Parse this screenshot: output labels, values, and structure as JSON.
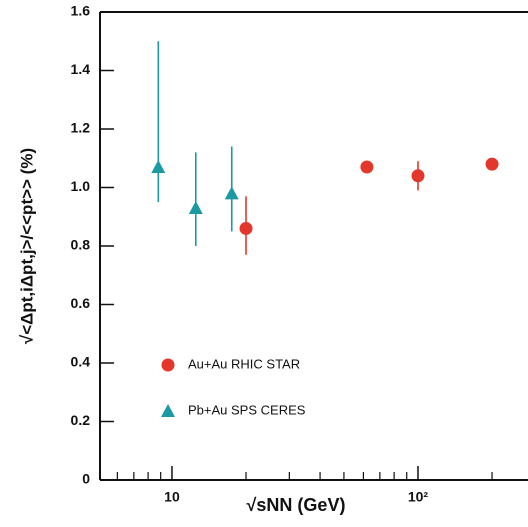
{
  "chart_data": {
    "type": "scatter",
    "xlabel": "√sNN (GeV)",
    "ylabel": "√<Δpt,iΔpt,j>/<<pt>> (%)",
    "xscale": "log",
    "xlim": [
      5.1,
      280
    ],
    "ylim": [
      0,
      1.6
    ],
    "xticks": [
      10,
      {
        "value": 100,
        "label": "10²"
      }
    ],
    "xminorticks": [
      6,
      7,
      8,
      9,
      20,
      30,
      40,
      50,
      60,
      70,
      80,
      90,
      200
    ],
    "yticks": [
      0,
      0.2,
      0.4,
      0.6,
      0.8,
      {
        "value": 1,
        "label": "1.0"
      },
      1.2,
      1.4,
      1.6
    ],
    "legend": "lower left",
    "series": [
      {
        "name": "Au+Au RHIC STAR",
        "color": "#e2372a",
        "marker": "circle",
        "x": [
          20,
          62,
          100,
          200
        ],
        "values": [
          0.86,
          1.07,
          1.04,
          1.08
        ],
        "err_minus": [
          0.09,
          0.01,
          0.05,
          0.01
        ],
        "err_plus": [
          0.11,
          0.01,
          0.05,
          0.01
        ]
      },
      {
        "name": "Pb+Au SPS CERES",
        "color": "#1b9aa2",
        "marker": "triangle",
        "x": [
          8.8,
          12.5,
          17.5
        ],
        "values": [
          1.07,
          0.93,
          0.98
        ],
        "err_minus": [
          0.12,
          0.13,
          0.13
        ],
        "err_plus": [
          0.43,
          0.19,
          0.16
        ]
      }
    ]
  }
}
